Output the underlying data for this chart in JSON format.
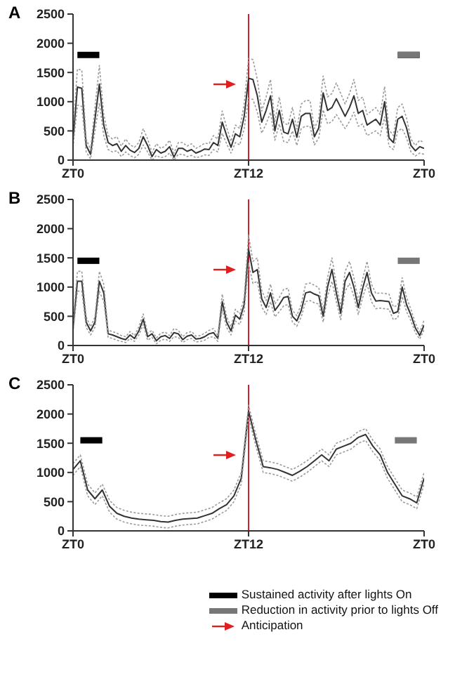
{
  "chart_data": [
    {
      "type": "line",
      "title": "A",
      "categories": [
        "ZT0",
        null,
        null,
        null,
        null,
        null,
        null,
        null,
        null,
        null,
        null,
        null,
        null,
        null,
        null,
        null,
        null,
        null,
        null,
        null,
        null,
        null,
        null,
        null,
        null,
        null,
        null,
        null,
        null,
        null,
        null,
        null,
        null,
        null,
        null,
        null,
        null,
        null,
        null,
        null,
        "ZT12",
        null,
        null,
        null,
        null,
        null,
        null,
        null,
        null,
        null,
        null,
        null,
        null,
        null,
        null,
        null,
        null,
        null,
        null,
        null,
        null,
        null,
        null,
        null,
        null,
        null,
        null,
        null,
        null,
        null,
        null,
        null,
        null,
        null,
        null,
        null,
        null,
        null,
        null,
        null,
        "ZT0"
      ],
      "ylim": [
        0,
        2500
      ],
      "yticks": [
        0,
        500,
        1000,
        1500,
        2000,
        2500
      ],
      "grid": false,
      "legend": false,
      "marker": "none",
      "ref_lines": [
        {
          "axis": "x",
          "value": "ZT12",
          "color": "#d02030"
        }
      ],
      "series": [
        {
          "color": "#333333",
          "values": [
            350,
            1250,
            1230,
            250,
            100,
            700,
            1300,
            600,
            300,
            250,
            280,
            150,
            250,
            170,
            130,
            200,
            400,
            250,
            60,
            180,
            120,
            150,
            230,
            50,
            200,
            200,
            150,
            180,
            120,
            150,
            190,
            180,
            300,
            250,
            650,
            420,
            220,
            450,
            400,
            750,
            1400,
            1380,
            1100,
            650,
            850,
            1100,
            500,
            850,
            480,
            450,
            700,
            390,
            750,
            800,
            800,
            400,
            550,
            1150,
            850,
            900,
            1050,
            900,
            750,
            900,
            1100,
            800,
            850,
            600,
            650,
            700,
            600,
            1000,
            380,
            300,
            700,
            750,
            550,
            250,
            160,
            230,
            200
          ],
          "line_style": "solid"
        },
        {
          "color": "#9a9a9a",
          "values": [
            220,
            940,
            920,
            140,
            20,
            500,
            980,
            420,
            180,
            140,
            160,
            60,
            140,
            80,
            40,
            100,
            260,
            140,
            0,
            80,
            40,
            60,
            120,
            0,
            100,
            100,
            60,
            80,
            40,
            60,
            90,
            80,
            180,
            140,
            460,
            280,
            120,
            300,
            260,
            540,
            1060,
            1040,
            820,
            460,
            620,
            820,
            340,
            620,
            320,
            300,
            500,
            250,
            540,
            580,
            580,
            260,
            380,
            860,
            620,
            660,
            780,
            660,
            540,
            660,
            820,
            580,
            620,
            420,
            460,
            500,
            420,
            740,
            240,
            180,
            500,
            540,
            380,
            140,
            70,
            120,
            100
          ],
          "line_style": "dotted"
        },
        {
          "color": "#9a9a9a",
          "line_style": "dotted",
          "values": [
            480,
            1560,
            1540,
            360,
            180,
            900,
            1620,
            780,
            420,
            360,
            400,
            240,
            360,
            260,
            220,
            300,
            540,
            360,
            130,
            280,
            200,
            240,
            340,
            120,
            300,
            300,
            240,
            280,
            200,
            240,
            290,
            280,
            420,
            360,
            840,
            560,
            320,
            600,
            540,
            960,
            1740,
            1720,
            1380,
            840,
            1080,
            1380,
            660,
            1080,
            640,
            600,
            900,
            530,
            960,
            1020,
            1020,
            540,
            720,
            1440,
            1080,
            1140,
            1320,
            1140,
            960,
            1140,
            1380,
            1020,
            1080,
            780,
            840,
            900,
            780,
            1260,
            520,
            420,
            900,
            960,
            720,
            360,
            250,
            340,
            300
          ]
        },
        {
          "color": "#000000",
          "values": [
            null,
            1800,
            1800,
            1800,
            1800,
            1800,
            1800,
            null,
            null,
            null,
            null,
            null,
            null,
            null,
            null,
            null,
            null,
            null,
            null,
            null,
            null,
            null,
            null,
            null,
            null,
            null,
            null,
            null,
            null,
            null,
            null,
            null,
            null,
            null,
            null,
            null,
            null,
            null,
            null,
            null,
            null,
            null,
            null,
            null,
            null,
            null,
            null,
            null,
            null,
            null,
            null,
            null,
            null,
            null,
            null,
            null,
            null,
            null,
            null,
            null,
            null,
            null,
            null,
            null,
            null,
            null,
            null,
            null,
            null,
            null,
            null,
            null,
            null,
            null,
            1800,
            1800,
            1800,
            1800,
            1800,
            1800,
            null
          ]
        },
        {
          "color": "#777777",
          "values": [
            null,
            null,
            null,
            null,
            null,
            null,
            null,
            null,
            null,
            null,
            null,
            null,
            null,
            null,
            null,
            null,
            null,
            null,
            null,
            null,
            null,
            null,
            null,
            null,
            null,
            null,
            null,
            null,
            null,
            null,
            null,
            null,
            null,
            null,
            null,
            null,
            null,
            null,
            null,
            null,
            null,
            null,
            null,
            null,
            null,
            null,
            null,
            null,
            null,
            null,
            null,
            null,
            null,
            null,
            null,
            null,
            null,
            null,
            null,
            null,
            null,
            null,
            null,
            null,
            null,
            null,
            null,
            null,
            null,
            null,
            null,
            null,
            null,
            null,
            1800,
            1800,
            1800,
            1800,
            1800,
            1800,
            null
          ]
        }
      ]
    },
    {
      "type": "line",
      "title": "B",
      "categories": [
        "ZT0",
        null,
        null,
        null,
        null,
        null,
        null,
        null,
        null,
        null,
        null,
        null,
        null,
        null,
        null,
        null,
        null,
        null,
        null,
        null,
        null,
        null,
        null,
        null,
        null,
        null,
        null,
        null,
        null,
        null,
        null,
        null,
        null,
        null,
        null,
        null,
        null,
        null,
        null,
        null,
        "ZT12",
        null,
        null,
        null,
        null,
        null,
        null,
        null,
        null,
        null,
        null,
        null,
        null,
        null,
        null,
        null,
        null,
        null,
        null,
        null,
        null,
        null,
        null,
        null,
        null,
        null,
        null,
        null,
        null,
        null,
        null,
        null,
        null,
        null,
        null,
        null,
        null,
        null,
        null,
        null,
        "ZT0"
      ],
      "ylim": [
        0,
        2500
      ],
      "yticks": [
        0,
        500,
        1000,
        1500,
        2000,
        2500
      ],
      "grid": false,
      "legend": false,
      "marker": "none",
      "ref_lines": [
        {
          "axis": "x",
          "value": "ZT12",
          "color": "#d02030"
        }
      ],
      "series": [
        {
          "color": "#333333",
          "values": [
            300,
            1100,
            1100,
            400,
            250,
            400,
            1100,
            900,
            200,
            180,
            150,
            120,
            100,
            180,
            120,
            250,
            450,
            150,
            200,
            80,
            150,
            170,
            120,
            220,
            200,
            100,
            160,
            180,
            110,
            120,
            150,
            200,
            220,
            120,
            750,
            400,
            250,
            520,
            450,
            700,
            1650,
            1250,
            1300,
            800,
            650,
            900,
            600,
            700,
            820,
            840,
            500,
            420,
            600,
            900,
            920,
            880,
            850,
            500,
            1000,
            1300,
            900,
            550,
            1100,
            1250,
            1000,
            650,
            980,
            1250,
            900,
            760,
            770,
            760,
            750,
            550,
            580,
            1000,
            700,
            520,
            300,
            170,
            350
          ],
          "line_style": "solid"
        },
        {
          "color": "#9a9a9a",
          "values": [
            220,
            930,
            930,
            310,
            180,
            310,
            930,
            750,
            140,
            120,
            90,
            70,
            50,
            120,
            70,
            180,
            360,
            90,
            140,
            30,
            90,
            110,
            70,
            150,
            140,
            50,
            100,
            120,
            60,
            70,
            90,
            140,
            150,
            70,
            620,
            310,
            180,
            420,
            360,
            580,
            1410,
            1060,
            1100,
            660,
            530,
            750,
            490,
            580,
            680,
            700,
            400,
            330,
            490,
            750,
            770,
            730,
            710,
            400,
            840,
            1100,
            750,
            440,
            930,
            1060,
            840,
            530,
            820,
            1060,
            750,
            630,
            640,
            630,
            620,
            440,
            470,
            840,
            580,
            420,
            220,
            110,
            270
          ],
          "line_style": "dotted"
        },
        {
          "color": "#9a9a9a",
          "line_style": "dotted",
          "values": [
            380,
            1270,
            1270,
            490,
            320,
            490,
            1270,
            1050,
            260,
            240,
            210,
            170,
            150,
            240,
            170,
            320,
            540,
            210,
            260,
            130,
            210,
            230,
            170,
            290,
            260,
            150,
            220,
            240,
            160,
            170,
            210,
            260,
            290,
            170,
            880,
            490,
            320,
            620,
            540,
            820,
            1890,
            1440,
            1500,
            940,
            770,
            1050,
            710,
            820,
            960,
            980,
            600,
            510,
            710,
            1050,
            1070,
            1030,
            990,
            600,
            1160,
            1500,
            1050,
            660,
            1270,
            1440,
            1160,
            770,
            1140,
            1440,
            1050,
            890,
            900,
            890,
            880,
            660,
            690,
            1160,
            820,
            620,
            380,
            230,
            430
          ]
        },
        {
          "color": "#000000",
          "values": [
            null,
            1450,
            1450,
            1450,
            1450,
            1450,
            1450,
            null,
            null,
            null,
            null,
            null,
            null,
            null,
            null,
            null,
            null,
            null,
            null,
            null,
            null,
            null,
            null,
            null,
            null,
            null,
            null,
            null,
            null,
            null,
            null,
            null,
            null,
            null,
            null,
            null,
            null,
            null,
            null,
            null,
            null,
            null,
            null,
            null,
            null,
            null,
            null,
            null,
            null,
            null,
            null,
            null,
            null,
            null,
            null,
            null,
            null,
            null,
            null,
            null,
            null,
            null,
            null,
            null,
            null,
            null,
            null,
            null,
            null,
            null,
            null,
            null,
            null,
            null,
            null,
            null,
            null,
            null,
            null,
            null,
            null
          ]
        },
        {
          "color": "#777777",
          "values": [
            null,
            null,
            null,
            null,
            null,
            null,
            null,
            null,
            null,
            null,
            null,
            null,
            null,
            null,
            null,
            null,
            null,
            null,
            null,
            null,
            null,
            null,
            null,
            null,
            null,
            null,
            null,
            null,
            null,
            null,
            null,
            null,
            null,
            null,
            null,
            null,
            null,
            null,
            null,
            null,
            null,
            null,
            null,
            null,
            null,
            null,
            null,
            null,
            null,
            null,
            null,
            null,
            null,
            null,
            null,
            null,
            null,
            null,
            null,
            null,
            null,
            null,
            null,
            null,
            null,
            null,
            null,
            null,
            null,
            null,
            null,
            null,
            null,
            null,
            1450,
            1450,
            1450,
            1450,
            1450,
            1450,
            null
          ]
        }
      ]
    },
    {
      "type": "line",
      "title": "C",
      "categories": [
        "ZT0",
        null,
        null,
        null,
        null,
        null,
        null,
        null,
        null,
        null,
        null,
        null,
        null,
        null,
        null,
        null,
        null,
        null,
        null,
        null,
        null,
        null,
        null,
        null,
        "ZT12",
        null,
        null,
        null,
        null,
        null,
        null,
        null,
        null,
        null,
        null,
        null,
        null,
        null,
        null,
        null,
        null,
        null,
        null,
        null,
        null,
        null,
        null,
        null,
        "ZT0"
      ],
      "ylim": [
        0,
        2500
      ],
      "yticks": [
        0,
        500,
        1000,
        1500,
        2000,
        2500
      ],
      "grid": false,
      "legend": "bottom right",
      "marker": "none",
      "ref_lines": [
        {
          "axis": "x",
          "value": "ZT12",
          "color": "#d02030"
        }
      ],
      "annotations": [
        "Anticipation"
      ],
      "series": [
        {
          "color": "#333333",
          "values": [
            1050,
            1200,
            700,
            550,
            700,
            420,
            300,
            250,
            220,
            200,
            190,
            180,
            160,
            150,
            180,
            200,
            210,
            220,
            260,
            300,
            380,
            450,
            600,
            900,
            2050,
            1550,
            1100,
            1080,
            1050,
            1000,
            950,
            1020,
            1100,
            1200,
            1300,
            1200,
            1400,
            1450,
            1500,
            1600,
            1650,
            1450,
            1300,
            1000,
            800,
            600,
            550,
            480,
            900
          ],
          "line_style": "solid"
        },
        {
          "color": "#9a9a9a",
          "values": [
            950,
            1100,
            600,
            450,
            600,
            320,
            200,
            150,
            120,
            100,
            90,
            80,
            60,
            50,
            80,
            100,
            110,
            120,
            160,
            200,
            280,
            350,
            500,
            800,
            1950,
            1450,
            1000,
            980,
            950,
            900,
            850,
            920,
            1000,
            1100,
            1200,
            1100,
            1300,
            1350,
            1400,
            1500,
            1550,
            1350,
            1200,
            900,
            700,
            500,
            450,
            380,
            800
          ],
          "line_style": "dotted"
        },
        {
          "color": "#9a9a9a",
          "line_style": "dotted",
          "values": [
            1150,
            1300,
            800,
            650,
            800,
            520,
            400,
            350,
            320,
            300,
            290,
            280,
            260,
            250,
            280,
            300,
            310,
            320,
            360,
            400,
            480,
            550,
            700,
            1000,
            2150,
            1650,
            1200,
            1180,
            1150,
            1100,
            1050,
            1120,
            1200,
            1300,
            1400,
            1300,
            1500,
            1550,
            1600,
            1700,
            1750,
            1550,
            1400,
            1100,
            900,
            700,
            650,
            580,
            1000
          ]
        },
        {
          "name": "Sustained activity after lights On",
          "color": "#000000",
          "values": [
            null,
            1550,
            1550,
            1550,
            1550,
            null,
            null,
            null,
            null,
            null,
            null,
            null,
            null,
            null,
            null,
            null,
            null,
            null,
            null,
            null,
            null,
            null,
            null,
            null,
            null,
            null,
            null,
            null,
            null,
            null,
            null,
            null,
            null,
            null,
            null,
            null,
            null,
            null,
            null,
            null,
            null,
            null,
            null,
            null,
            null,
            null,
            null,
            null,
            null
          ]
        },
        {
          "name": "Reduction in activity prior to lights Off",
          "color": "#777777",
          "values": [
            null,
            null,
            null,
            null,
            null,
            null,
            null,
            null,
            null,
            null,
            null,
            null,
            null,
            null,
            null,
            null,
            null,
            null,
            null,
            null,
            null,
            null,
            null,
            null,
            null,
            null,
            null,
            null,
            null,
            null,
            null,
            null,
            null,
            null,
            null,
            null,
            null,
            null,
            null,
            null,
            null,
            null,
            null,
            null,
            1550,
            1550,
            1550,
            1550,
            null
          ]
        }
      ]
    }
  ]
}
